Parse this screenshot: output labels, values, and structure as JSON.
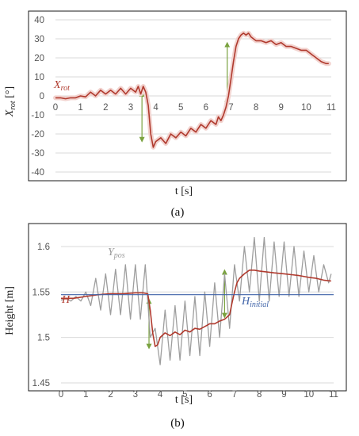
{
  "chart_data": [
    {
      "type": "line",
      "panel_label": "(a)",
      "xlabel": "t [s]",
      "ylabel": {
        "base": "X",
        "sub": "rot",
        "unit": " [°]"
      },
      "xlim": [
        0,
        11
      ],
      "ylim": [
        -40,
        40
      ],
      "x_ticks": [
        "0",
        "1",
        "2",
        "3",
        "4",
        "5",
        "6",
        "7",
        "8",
        "9",
        "10",
        "11"
      ],
      "y_ticks": [
        "40",
        "30",
        "20",
        "10",
        "0",
        "-10",
        "-20",
        "-30",
        "-40"
      ],
      "grid": "horizontal",
      "colors": {
        "series": "#b03a2e",
        "halo": "#f2d3cf",
        "arrow": "#7aa23f",
        "grid": "#d9d9d9",
        "frame": "#1a1a1a"
      },
      "annotations": [
        {
          "base": "X",
          "sub": "rot",
          "color": "#b03a2e"
        }
      ],
      "arrows": [
        {
          "x": 3.45,
          "y1": 1,
          "y2": -23
        },
        {
          "x": 6.85,
          "y1": 27,
          "y2": -4
        }
      ],
      "series": [
        {
          "x": [
            0,
            0.2,
            0.4,
            0.6,
            0.8,
            1.0,
            1.2,
            1.4,
            1.6,
            1.8,
            2.0,
            2.2,
            2.4,
            2.6,
            2.8,
            3.0,
            3.2,
            3.3,
            3.4,
            3.5,
            3.6,
            3.7,
            3.8,
            3.9,
            4.0,
            4.2,
            4.4,
            4.6,
            4.8,
            5.0,
            5.2,
            5.4,
            5.6,
            5.8,
            6.0,
            6.2,
            6.4,
            6.5,
            6.6,
            6.7,
            6.8,
            6.9,
            7.0,
            7.1,
            7.2,
            7.3,
            7.4,
            7.5,
            7.6,
            7.7,
            7.8,
            7.9,
            8.0,
            8.2,
            8.4,
            8.6,
            8.8,
            9.0,
            9.2,
            9.4,
            9.6,
            9.8,
            10.0,
            10.2,
            10.4,
            10.6,
            10.8,
            10.9
          ],
          "y": [
            -1,
            -1,
            -1.5,
            -1,
            -1,
            0,
            -0.5,
            2,
            0,
            3,
            1,
            3,
            1,
            4,
            1,
            4,
            2,
            5,
            1,
            5,
            2,
            -5,
            -20,
            -27,
            -24,
            -22,
            -25,
            -20,
            -22,
            -19,
            -21,
            -17,
            -19,
            -15,
            -17,
            -13,
            -15,
            -11,
            -13,
            -10,
            -6,
            0,
            9,
            18,
            26,
            30,
            32,
            33,
            32,
            33,
            31,
            30,
            29,
            29,
            28,
            29,
            27,
            28,
            26,
            26,
            25,
            24,
            24,
            22,
            20,
            18,
            17,
            17
          ]
        }
      ]
    },
    {
      "type": "line",
      "panel_label": "(b)",
      "xlabel": "t [s]",
      "ylabel": "Height [m]",
      "xlim": [
        0,
        11
      ],
      "ylim": [
        1.45,
        1.62
      ],
      "x_ticks": [
        "0",
        "1",
        "2",
        "3",
        "4",
        "5",
        "6",
        "7",
        "8",
        "9",
        "10",
        "11"
      ],
      "y_ticks": [
        "1.6",
        "1.55",
        "1.5",
        "1.45"
      ],
      "y_tick_values": [
        1.6,
        1.55,
        1.5,
        1.45
      ],
      "grid": "horizontal",
      "colors": {
        "grid": "#d9d9d9",
        "frame": "#1a1a1a",
        "arrow": "#7aa23f"
      },
      "annotations": [
        {
          "base": "Y",
          "sub": "pos",
          "color": "#9a9a9a"
        },
        {
          "base": "H",
          "sub": "",
          "color": "#b03a2e"
        },
        {
          "base": "H",
          "sub": "initial",
          "color": "#3f63a8"
        }
      ],
      "arrows": [
        {
          "x": 3.55,
          "y1": 1.54,
          "y2": 1.49
        },
        {
          "x": 6.6,
          "y1": 1.524,
          "y2": 1.572
        }
      ],
      "series": [
        {
          "label_index": 0,
          "color": "#9e9e9e",
          "x": [
            0,
            0.2,
            0.4,
            0.6,
            0.8,
            1.0,
            1.2,
            1.4,
            1.6,
            1.8,
            2.0,
            2.2,
            2.4,
            2.6,
            2.8,
            3.0,
            3.2,
            3.4,
            3.6,
            3.8,
            4.0,
            4.2,
            4.4,
            4.6,
            4.8,
            5.0,
            5.2,
            5.4,
            5.6,
            5.8,
            6.0,
            6.2,
            6.4,
            6.6,
            6.8,
            7.0,
            7.2,
            7.4,
            7.6,
            7.8,
            8.0,
            8.2,
            8.4,
            8.6,
            8.8,
            9.0,
            9.2,
            9.4,
            9.6,
            9.8,
            10.0,
            10.2,
            10.4,
            10.6,
            10.8,
            10.9
          ],
          "y": [
            1.541,
            1.543,
            1.54,
            1.545,
            1.54,
            1.55,
            1.535,
            1.565,
            1.53,
            1.57,
            1.525,
            1.575,
            1.525,
            1.58,
            1.52,
            1.58,
            1.52,
            1.58,
            1.5,
            1.51,
            1.47,
            1.53,
            1.475,
            1.535,
            1.475,
            1.54,
            1.48,
            1.545,
            1.48,
            1.55,
            1.49,
            1.56,
            1.5,
            1.57,
            1.51,
            1.58,
            1.54,
            1.6,
            1.55,
            1.61,
            1.54,
            1.61,
            1.54,
            1.605,
            1.545,
            1.605,
            1.545,
            1.6,
            1.545,
            1.595,
            1.55,
            1.59,
            1.55,
            1.58,
            1.56,
            1.57
          ]
        },
        {
          "label_index": 1,
          "color": "#b03a2e",
          "x": [
            0,
            0.5,
            1.0,
            1.5,
            2.0,
            2.5,
            3.0,
            3.3,
            3.5,
            3.6,
            3.7,
            3.8,
            3.9,
            4.0,
            4.2,
            4.4,
            4.6,
            4.8,
            5.0,
            5.2,
            5.4,
            5.6,
            5.8,
            6.0,
            6.2,
            6.4,
            6.6,
            6.8,
            6.9,
            7.0,
            7.1,
            7.2,
            7.4,
            7.6,
            7.8,
            8.0,
            8.3,
            8.6,
            9.0,
            9.3,
            9.6,
            10.0,
            10.3,
            10.6,
            10.9
          ],
          "y": [
            1.543,
            1.543,
            1.545,
            1.547,
            1.548,
            1.548,
            1.549,
            1.549,
            1.548,
            1.53,
            1.505,
            1.49,
            1.492,
            1.5,
            1.505,
            1.502,
            1.506,
            1.503,
            1.508,
            1.506,
            1.51,
            1.509,
            1.512,
            1.515,
            1.515,
            1.518,
            1.52,
            1.525,
            1.538,
            1.55,
            1.56,
            1.565,
            1.57,
            1.574,
            1.574,
            1.573,
            1.572,
            1.571,
            1.57,
            1.569,
            1.568,
            1.566,
            1.565,
            1.563,
            1.562
          ]
        },
        {
          "label_index": 2,
          "color": "#3f63a8",
          "x": [
            0,
            11
          ],
          "y": [
            1.547,
            1.547
          ]
        }
      ]
    }
  ]
}
